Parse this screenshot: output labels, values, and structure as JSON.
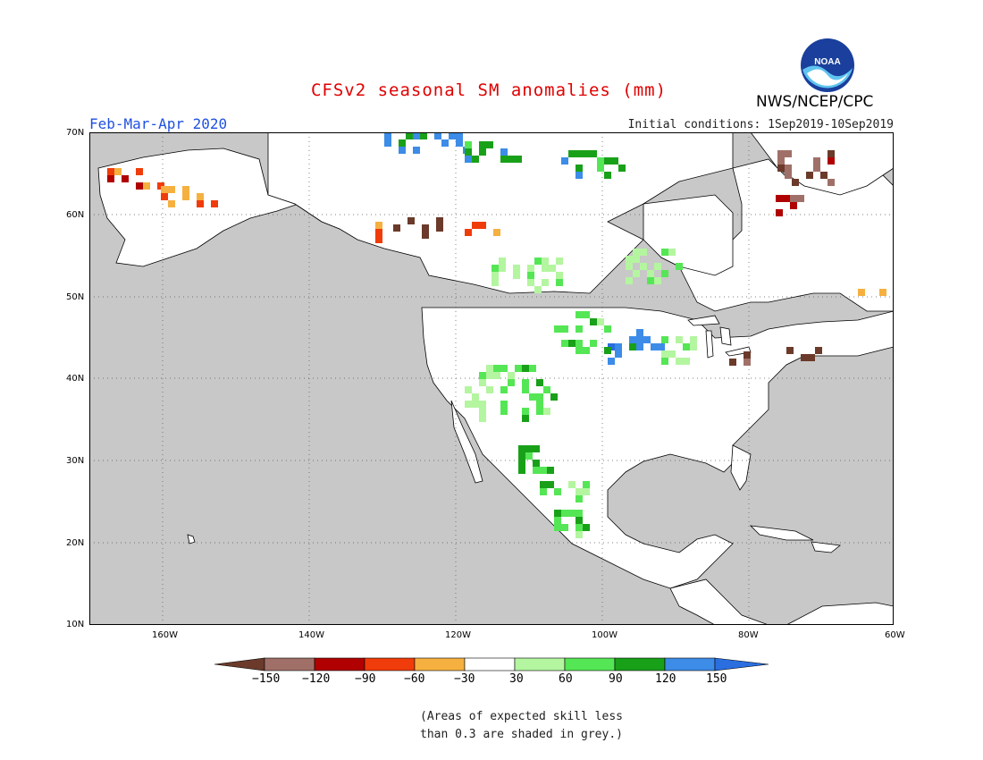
{
  "header": {
    "title": "CFSv2 seasonal SM anomalies (mm)",
    "season": "Feb-Mar-Apr 2020",
    "initial_conditions": "Initial conditions: 1Sep2019-10Sep2019",
    "agency": "NWS/NCEP/CPC",
    "logo_text": "NOAA"
  },
  "axes": {
    "latitudes": [
      "70N",
      "60N",
      "50N",
      "40N",
      "30N",
      "20N",
      "10N"
    ],
    "longitudes": [
      "160W",
      "140W",
      "120W",
      "100W",
      "80W",
      "60W"
    ]
  },
  "legend": {
    "colors": [
      "#6b3a2a",
      "#a07068",
      "#b00000",
      "#f03c0a",
      "#f5b040",
      "#ffffff",
      "#b4f5a0",
      "#55e655",
      "#19a019",
      "#3c8ce8",
      "#2a6ee0"
    ],
    "labels": [
      "−150",
      "−120",
      "−90",
      "−60",
      "−30",
      "30",
      "60",
      "90",
      "120",
      "150"
    ]
  },
  "footnote": {
    "line1": "(Areas of expected skill less",
    "line2": "than 0.3 are shaded in grey.)"
  },
  "colors": {
    "ocean_grey": "#c8c8c8",
    "no_skill_land": "#ffffff",
    "title_red": "#e00000",
    "season_blue": "#2050e0"
  }
}
